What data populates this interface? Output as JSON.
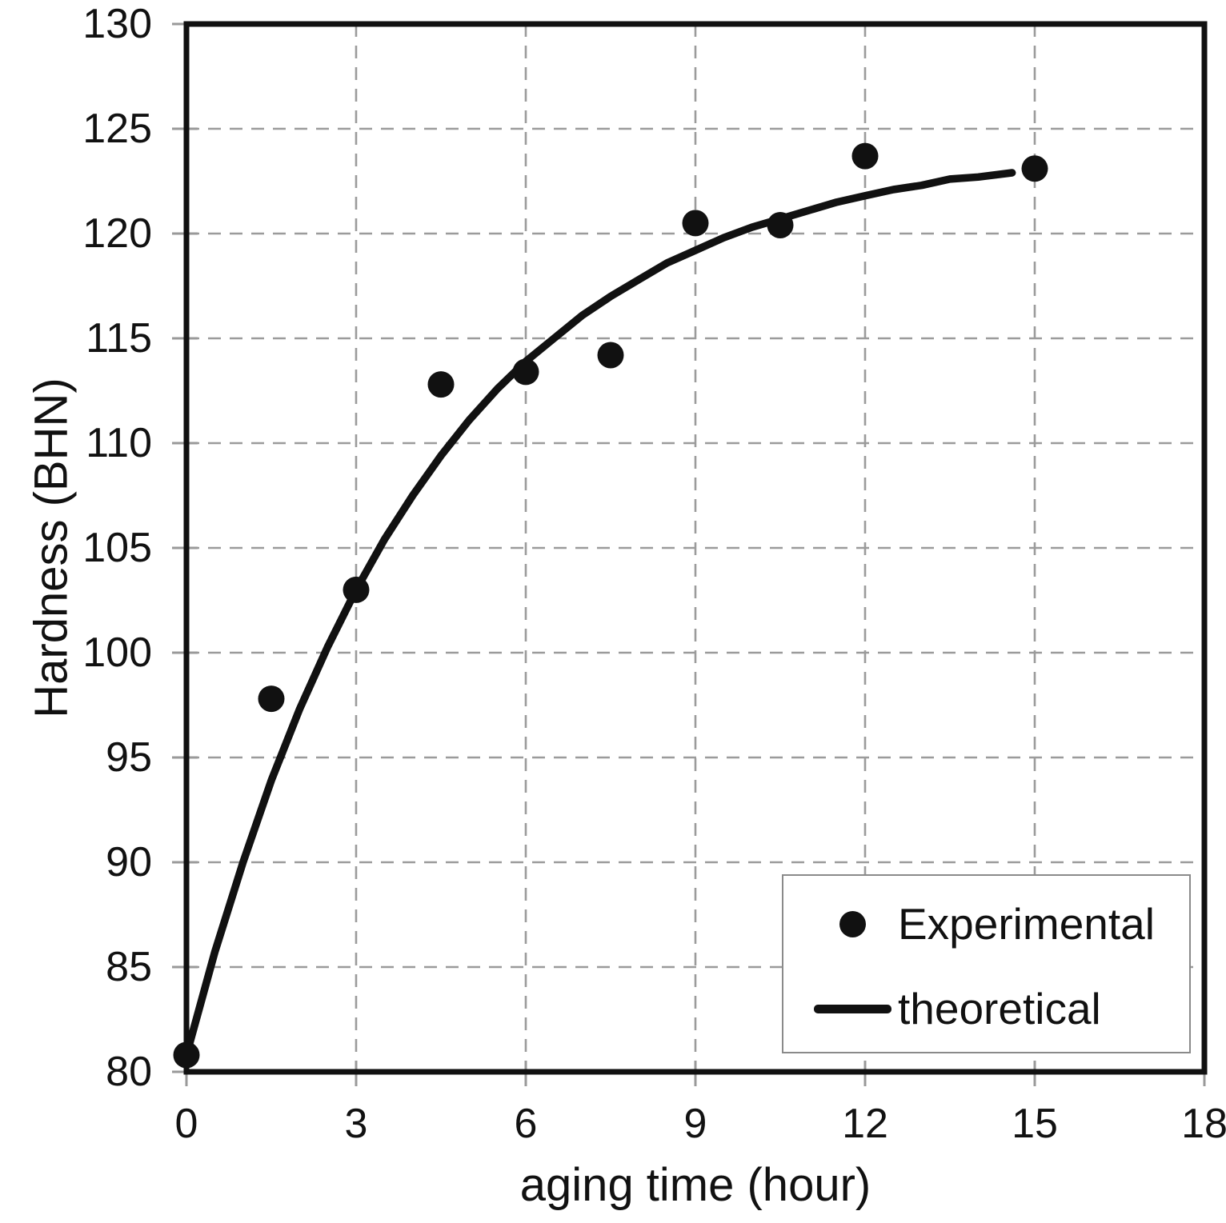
{
  "colors": {
    "ink": "#111111",
    "grid": "#999999",
    "legend_border": "#8a8a8a",
    "background": "#ffffff"
  },
  "chart_data": {
    "type": "scatter",
    "title": "",
    "xlabel": "aging time (hour)",
    "ylabel": "Hardness (BHN)",
    "xlim": [
      0,
      18
    ],
    "ylim": [
      80,
      130
    ],
    "x_ticks": [
      0,
      3,
      6,
      9,
      12,
      15,
      18
    ],
    "y_ticks": [
      80,
      85,
      90,
      95,
      100,
      105,
      110,
      115,
      120,
      125,
      130
    ],
    "grid": {
      "style": "dashed",
      "color": "#999999",
      "vertical": true,
      "horizontal": true
    },
    "legend": {
      "position": "lower-right",
      "entries": [
        "Experimental",
        "theoretical"
      ]
    },
    "series": [
      {
        "name": "Experimental",
        "kind": "scatter",
        "marker": "filled-circle",
        "color": "#111111",
        "points": [
          [
            0,
            80.8
          ],
          [
            1.5,
            97.8
          ],
          [
            3,
            103.0
          ],
          [
            4.5,
            112.8
          ],
          [
            6,
            113.4
          ],
          [
            7.5,
            114.2
          ],
          [
            9,
            120.5
          ],
          [
            10.5,
            120.4
          ],
          [
            12,
            123.7
          ],
          [
            15,
            123.1
          ]
        ]
      },
      {
        "name": "theoretical",
        "kind": "line",
        "color": "#111111",
        "points": [
          [
            0,
            80.8
          ],
          [
            0.5,
            85.7
          ],
          [
            1,
            90.0
          ],
          [
            1.5,
            93.9
          ],
          [
            2,
            97.3
          ],
          [
            2.5,
            100.3
          ],
          [
            3,
            103.0
          ],
          [
            3.5,
            105.4
          ],
          [
            4,
            107.5
          ],
          [
            4.5,
            109.4
          ],
          [
            5,
            111.1
          ],
          [
            5.5,
            112.6
          ],
          [
            6,
            113.9
          ],
          [
            6.5,
            115.0
          ],
          [
            7,
            116.1
          ],
          [
            7.5,
            117.0
          ],
          [
            8,
            117.8
          ],
          [
            8.5,
            118.6
          ],
          [
            9,
            119.2
          ],
          [
            9.5,
            119.8
          ],
          [
            10,
            120.3
          ],
          [
            10.5,
            120.7
          ],
          [
            11,
            121.1
          ],
          [
            11.5,
            121.5
          ],
          [
            12,
            121.8
          ],
          [
            12.5,
            122.1
          ],
          [
            13,
            122.3
          ],
          [
            13.5,
            122.6
          ],
          [
            14,
            122.7
          ],
          [
            14.6,
            122.9
          ]
        ]
      }
    ]
  }
}
